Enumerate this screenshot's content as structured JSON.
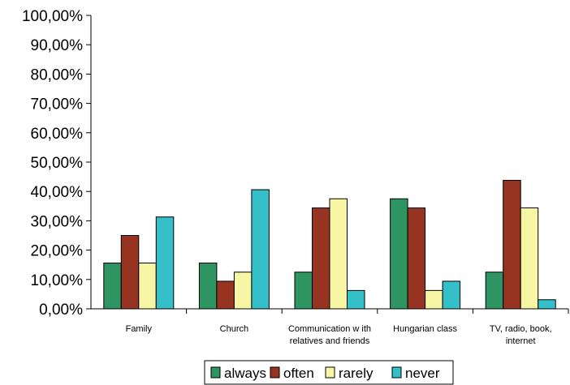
{
  "chart_data": {
    "type": "bar",
    "categories": [
      [
        "Family"
      ],
      [
        "Church"
      ],
      [
        "Communication w ith",
        "relatives and friends"
      ],
      [
        "Hungarian class"
      ],
      [
        "TV, radio, book,",
        "internet"
      ]
    ],
    "series": [
      {
        "name": "always",
        "color": "#2e9461",
        "values": [
          15.6,
          15.6,
          12.5,
          37.5,
          12.5
        ]
      },
      {
        "name": "often",
        "color": "#963421",
        "values": [
          25.0,
          9.4,
          34.4,
          34.4,
          43.8
        ]
      },
      {
        "name": "rarely",
        "color": "#f7f6a4",
        "values": [
          15.6,
          12.5,
          37.5,
          6.25,
          34.4
        ]
      },
      {
        "name": "never",
        "color": "#35c0c9",
        "values": [
          31.3,
          40.6,
          6.25,
          9.4,
          3.1
        ]
      }
    ],
    "y_ticks": [
      "0,00%",
      "10,00%",
      "20,00%",
      "30,00%",
      "40,00%",
      "50,00%",
      "60,00%",
      "70,00%",
      "80,00%",
      "90,00%",
      "100,00%"
    ],
    "ylim": [
      0,
      100
    ],
    "legend_position": "bottom",
    "grid": false
  }
}
